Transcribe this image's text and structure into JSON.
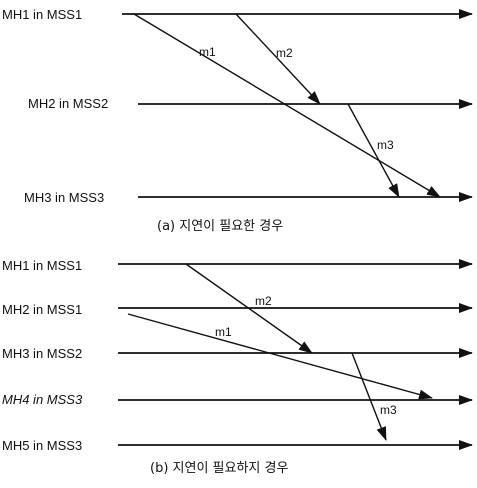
{
  "panels": [
    {
      "caption": "(a) 지연이 필요한 경우",
      "processes": [
        {
          "name": "MH1 in MSS1"
        },
        {
          "name": "MH2 in MSS2"
        },
        {
          "name": "MH3 in MSS3"
        }
      ],
      "messages": [
        {
          "label": "m1",
          "from": 0,
          "to": 2
        },
        {
          "label": "m2",
          "from": 0,
          "to": 1
        },
        {
          "label": "m3",
          "from": 1,
          "to": 2
        }
      ]
    },
    {
      "caption": "(b) 지연이 필요하지 경우",
      "processes": [
        {
          "name": "MH1 in MSS1"
        },
        {
          "name": "MH2 in MSS1"
        },
        {
          "name": "MH3 in MSS2"
        },
        {
          "name": "MH4 in MSS3"
        },
        {
          "name": "MH5 in MSS3"
        }
      ],
      "messages": [
        {
          "label": "m2",
          "from": 0,
          "to": 2
        },
        {
          "label": "m1",
          "from": 1,
          "to": 3
        },
        {
          "label": "m3",
          "from": 2,
          "to": 4
        }
      ]
    }
  ]
}
